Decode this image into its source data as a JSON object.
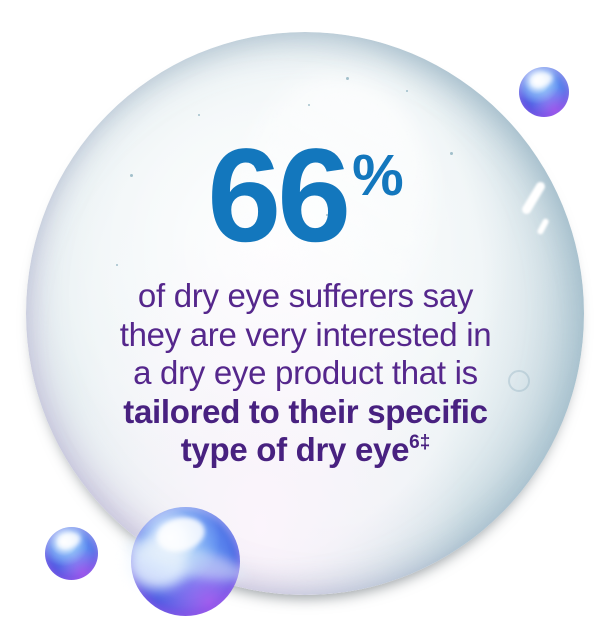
{
  "infographic": {
    "stat_value": "66",
    "stat_unit": "%",
    "description": {
      "line1": "of dry eye sufferers say",
      "line2": "they are very interested in",
      "line3": "a dry eye product that is",
      "line4": "tailored to their specific",
      "line5": "type of dry eye",
      "footnote_marker": "6‡"
    },
    "colors": {
      "stat_number_blue": "#1377bd",
      "body_text_purple": "#55278c",
      "emphasis_text_purple": "#482180",
      "glass_bubble_rim": "#b0c6d2",
      "decor_bubble_blue": "#4a6ae4",
      "decor_bubble_violet": "#9163ea"
    }
  }
}
